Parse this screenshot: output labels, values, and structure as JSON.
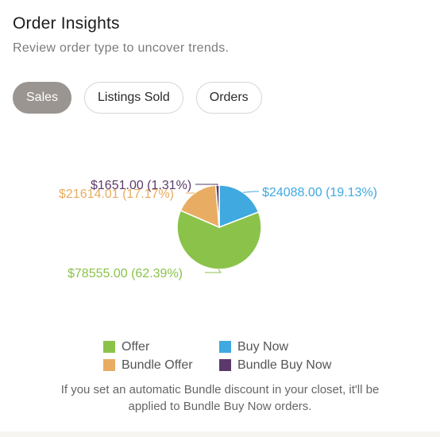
{
  "header": {
    "title": "Order Insights",
    "subtitle": "Review order type to uncover trends."
  },
  "tabs": [
    {
      "label": "Sales",
      "active": true
    },
    {
      "label": "Listings Sold",
      "active": false
    },
    {
      "label": "Orders",
      "active": false
    }
  ],
  "chart_data": {
    "type": "pie",
    "slices": [
      {
        "name": "Buy Now",
        "value": 24088.0,
        "label": "$24088.00 (19.13%)",
        "color": "#3fa9e0"
      },
      {
        "name": "Offer",
        "value": 78555.0,
        "label": "$78555.00 (62.39%)",
        "color": "#8bc34a"
      },
      {
        "name": "Bundle Offer",
        "value": 21614.01,
        "label": "$21614.01 (17.17%)",
        "color": "#e8ad62"
      },
      {
        "name": "Bundle Buy Now",
        "value": 1651.0,
        "label": "$1651.00 (1.31%)",
        "color": "#5b3a6b"
      }
    ]
  },
  "legend": {
    "items": [
      {
        "label": "Offer",
        "color": "#8bc34a"
      },
      {
        "label": "Buy Now",
        "color": "#3fa9e0"
      },
      {
        "label": "Bundle Offer",
        "color": "#e8ad62"
      },
      {
        "label": "Bundle Buy Now",
        "color": "#5b3a6b"
      }
    ]
  },
  "note": {
    "line1": "If you set an automatic Bundle discount in your closet, it'll be",
    "line2": "applied to Bundle Buy Now orders."
  }
}
